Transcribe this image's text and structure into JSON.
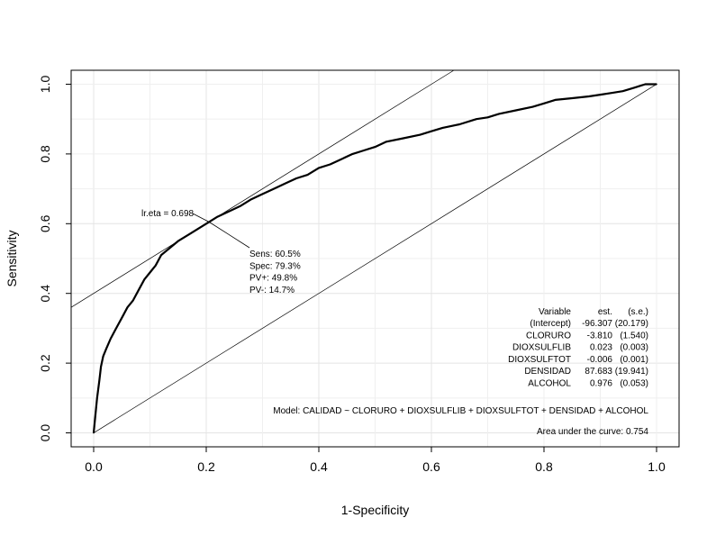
{
  "chart_data": {
    "type": "line",
    "title": "",
    "xlabel": "1-Specificity",
    "ylabel": "Sensitivity",
    "xlim": [
      -0.04,
      1.04
    ],
    "ylim": [
      -0.04,
      1.04
    ],
    "xticks": [
      "0.0",
      "0.2",
      "0.4",
      "0.6",
      "0.8",
      "1.0"
    ],
    "yticks": [
      "0.0",
      "0.2",
      "0.4",
      "0.6",
      "0.8",
      "1.0"
    ],
    "grid": true,
    "series": [
      {
        "name": "",
        "x": [
          0,
          0.003,
          0.006,
          0.01,
          0.013,
          0.017,
          0.022,
          0.03,
          0.04,
          0.05,
          0.06,
          0.07,
          0.08,
          0.09,
          0.1,
          0.11,
          0.12,
          0.135,
          0.15,
          0.17,
          0.19,
          0.205,
          0.22,
          0.24,
          0.26,
          0.28,
          0.3,
          0.32,
          0.34,
          0.36,
          0.38,
          0.4,
          0.42,
          0.44,
          0.46,
          0.48,
          0.5,
          0.52,
          0.55,
          0.58,
          0.6,
          0.62,
          0.65,
          0.68,
          0.7,
          0.72,
          0.75,
          0.78,
          0.8,
          0.82,
          0.85,
          0.88,
          0.9,
          0.92,
          0.94,
          0.96,
          0.97,
          0.98,
          1.0
        ],
        "y": [
          0,
          0.05,
          0.1,
          0.15,
          0.19,
          0.22,
          0.24,
          0.27,
          0.3,
          0.33,
          0.36,
          0.38,
          0.41,
          0.44,
          0.46,
          0.48,
          0.51,
          0.53,
          0.55,
          0.57,
          0.59,
          0.605,
          0.62,
          0.635,
          0.65,
          0.67,
          0.685,
          0.7,
          0.715,
          0.73,
          0.74,
          0.76,
          0.77,
          0.785,
          0.8,
          0.81,
          0.82,
          0.835,
          0.845,
          0.855,
          0.865,
          0.875,
          0.885,
          0.9,
          0.905,
          0.915,
          0.925,
          0.935,
          0.945,
          0.955,
          0.96,
          0.965,
          0.97,
          0.975,
          0.98,
          0.99,
          0.995,
          1.0,
          1.0
        ]
      }
    ],
    "reference_lines": [
      {
        "x": [
          0,
          1
        ],
        "y": [
          0,
          1
        ]
      },
      {
        "x": [
          -0.04,
          0.64
        ],
        "y": [
          0.36,
          1.04
        ]
      }
    ],
    "annotations": {
      "lr_eta": "lr.eta = 0.698",
      "point": {
        "x": 0.205,
        "y": 0.605
      },
      "stats": [
        "Sens: 60.5%",
        "Spec: 79.3%",
        "PV+: 49.8%",
        "PV-: 14.7%"
      ],
      "table_header": [
        "Variable",
        "est.",
        "(s.e.)"
      ],
      "table_rows": [
        [
          "(Intercept)",
          "-96.307",
          "(20.179)"
        ],
        [
          "CLORURO",
          "-3.810",
          "(1.540)"
        ],
        [
          "DIOXSULFLIB",
          "0.023",
          "(0.003)"
        ],
        [
          "DIOXSULFTOT",
          "-0.006",
          "(0.001)"
        ],
        [
          "DENSIDAD",
          "87.683",
          "(19.941)"
        ],
        [
          "ALCOHOL",
          "0.976",
          "(0.053)"
        ]
      ],
      "model": "Model:  CALIDAD ~ CLORURO + DIOXSULFLIB + DIOXSULFTOT + DENSIDAD + ALCOHOL",
      "auc": "Area under the curve: 0.754"
    }
  }
}
